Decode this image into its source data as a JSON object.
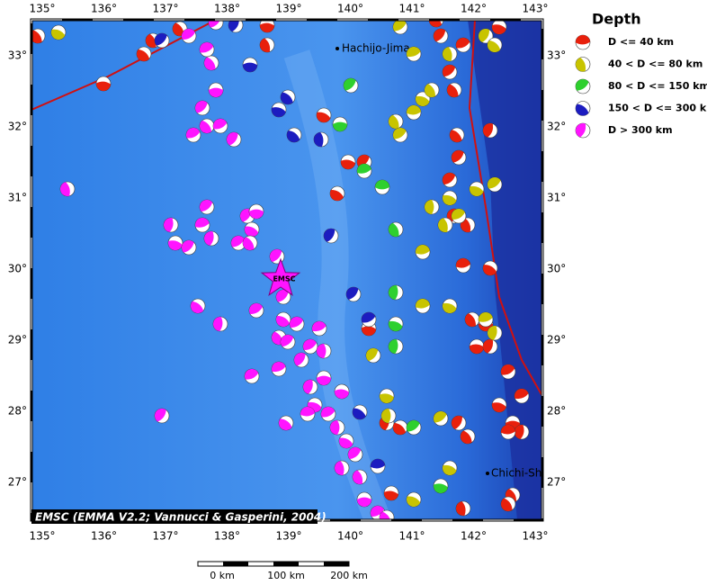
{
  "map": {
    "lon_labels": [
      "135°",
      "136°",
      "137°",
      "138°",
      "139°",
      "140°",
      "141°",
      "142°",
      "143°"
    ],
    "lat_labels": [
      "33°",
      "32°",
      "31°",
      "30°",
      "29°",
      "28°",
      "27°"
    ],
    "places": [
      "Hachijo-Jima",
      "Chichi-Shima"
    ],
    "epicenter_label": "EMSC",
    "credit": "EMSC (EMMA V2.2; Vannucci & Gasperini, 2004)",
    "scale_labels": [
      "0 km",
      "100 km",
      "200 km"
    ]
  },
  "legend": {
    "title": "Depth",
    "entries": [
      {
        "label": "D <= 40 km",
        "color": "#e8200c"
      },
      {
        "label": "40 < D <= 80 km",
        "color": "#c8c400"
      },
      {
        "label": "80 < D <= 150 km",
        "color": "#2ed02e"
      },
      {
        "label": "150 < D <= 300 km",
        "color": "#1c1cc0"
      },
      {
        "label": "D > 300 km",
        "color": "#ff14ff"
      }
    ]
  }
}
